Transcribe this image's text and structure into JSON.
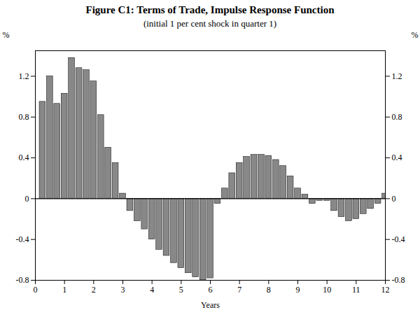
{
  "chart_data": {
    "type": "bar",
    "title": "Figure C1: Terms of Trade, Impulse Response Function",
    "subtitle": "(initial 1 per cent shock in quarter 1)",
    "xlabel": "Years",
    "ylabel": "%",
    "y2label": "%",
    "x": [
      0.25,
      0.5,
      0.75,
      1,
      1.25,
      1.5,
      1.75,
      2,
      2.25,
      2.5,
      2.75,
      3,
      3.25,
      3.5,
      3.75,
      4,
      4.25,
      4.5,
      4.75,
      5,
      5.25,
      5.5,
      5.75,
      6,
      6.25,
      6.5,
      6.75,
      7,
      7.25,
      7.5,
      7.75,
      8,
      8.25,
      8.5,
      8.75,
      9,
      9.25,
      9.5,
      9.75,
      10,
      10.25,
      10.5,
      10.75,
      11,
      11.25,
      11.5,
      11.75,
      12
    ],
    "values": [
      0.95,
      1.2,
      0.93,
      1.03,
      1.38,
      1.28,
      1.26,
      1.15,
      0.82,
      0.5,
      0.35,
      0.05,
      -0.12,
      -0.22,
      -0.3,
      -0.4,
      -0.5,
      -0.56,
      -0.63,
      -0.68,
      -0.73,
      -0.77,
      -0.8,
      -0.78,
      -0.05,
      0.1,
      0.25,
      0.35,
      0.41,
      0.43,
      0.43,
      0.42,
      0.38,
      0.32,
      0.22,
      0.1,
      0.04,
      -0.05,
      -0.02,
      -0.02,
      -0.12,
      -0.18,
      -0.22,
      -0.2,
      -0.15,
      -0.1,
      -0.05,
      0.05
    ],
    "color": "#888888",
    "xlim": [
      0,
      12
    ],
    "xticks": [
      0,
      1,
      2,
      3,
      4,
      5,
      6,
      7,
      8,
      9,
      10,
      11,
      12
    ],
    "ylim": [
      -0.8,
      1.45
    ],
    "yticks": [
      -0.8,
      -0.4,
      0,
      0.4,
      0.8,
      1.2
    ],
    "y2lim": [
      -0.8,
      1.45
    ],
    "y2ticks": [
      -0.8,
      -0.4,
      0,
      0.4,
      0.8,
      1.2
    ],
    "grid": false
  }
}
